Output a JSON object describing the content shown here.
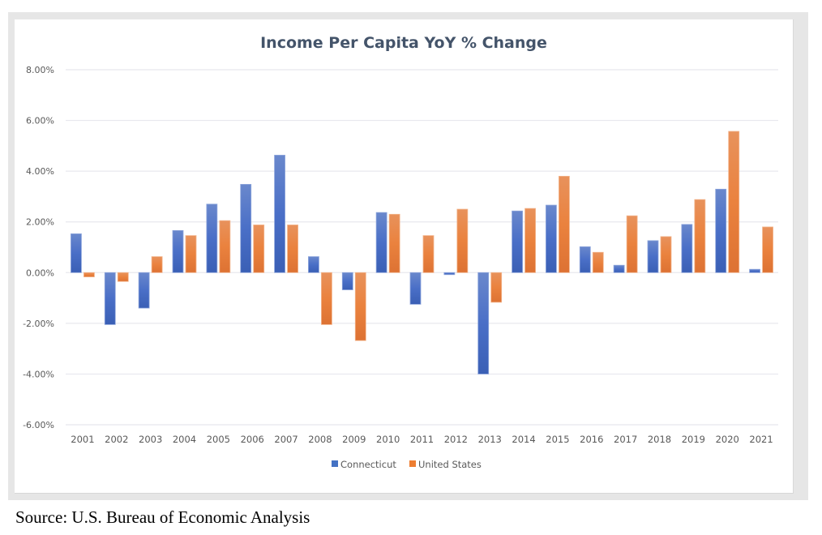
{
  "source": "Source: U.S. Bureau of Economic Analysis",
  "chart_data": {
    "type": "bar",
    "title": "Income Per Capita YoY % Change",
    "xlabel": "",
    "ylabel": "",
    "ylim": [
      -6,
      8
    ],
    "y_ticks": [
      8,
      6,
      4,
      2,
      0,
      -2,
      -4,
      -6
    ],
    "y_tick_labels": [
      "8.00%",
      "6.00%",
      "4.00%",
      "2.00%",
      "0.00%",
      "-2.00%",
      "-4.00%",
      "-6.00%"
    ],
    "grid": true,
    "legend_position": "bottom",
    "categories": [
      "2001",
      "2002",
      "2003",
      "2004",
      "2005",
      "2006",
      "2007",
      "2008",
      "2009",
      "2010",
      "2011",
      "2012",
      "2013",
      "2014",
      "2015",
      "2016",
      "2017",
      "2018",
      "2019",
      "2020",
      "2021"
    ],
    "series": [
      {
        "name": "Connecticut",
        "color": "#4472c4",
        "values": [
          1.53,
          -2.05,
          -1.4,
          1.66,
          2.7,
          3.48,
          4.63,
          0.63,
          -0.68,
          2.37,
          -1.25,
          -0.08,
          -4.0,
          2.43,
          2.66,
          1.02,
          0.29,
          1.26,
          1.9,
          3.29,
          0.13
        ]
      },
      {
        "name": "United States",
        "color": "#ed7d31",
        "values": [
          -0.17,
          -0.35,
          0.63,
          1.46,
          2.05,
          1.88,
          1.88,
          -2.05,
          -2.68,
          2.3,
          1.46,
          2.5,
          -1.17,
          2.53,
          3.8,
          0.8,
          2.24,
          1.42,
          2.88,
          5.57,
          1.8
        ]
      }
    ]
  }
}
